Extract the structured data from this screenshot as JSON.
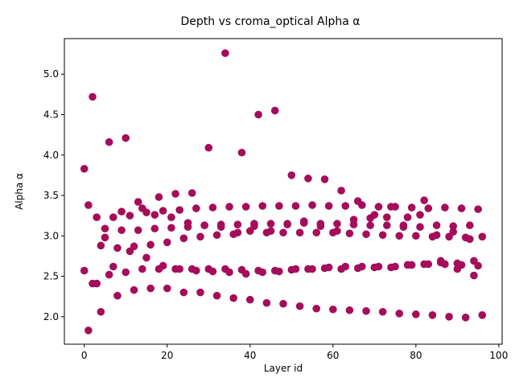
{
  "chart_data": {
    "type": "scatter",
    "title": "Depth vs croma_optical Alpha α",
    "xlabel": "Layer id",
    "ylabel": "Alpha α",
    "xlim": [
      -4.8,
      100.8
    ],
    "ylim": [
      1.66,
      5.44
    ],
    "xticks": [
      0,
      20,
      40,
      60,
      80,
      100
    ],
    "xtick_labels": [
      "0",
      "20",
      "40",
      "60",
      "80",
      "100"
    ],
    "yticks": [
      2.0,
      2.5,
      3.0,
      3.5,
      4.0,
      4.5,
      5.0
    ],
    "ytick_labels": [
      "2.0",
      "2.5",
      "3.0",
      "3.5",
      "4.0",
      "4.5",
      "5.0"
    ],
    "grid": false,
    "legend": "none",
    "marker_color": "#a50d5a",
    "series": [
      {
        "x": [
          0,
          0,
          1,
          1,
          2,
          2,
          3,
          3,
          4,
          4,
          5,
          5,
          6,
          6,
          7,
          7,
          8,
          8,
          9,
          9,
          10,
          10,
          11,
          11,
          12,
          12,
          13,
          13,
          14,
          14,
          15,
          15,
          16,
          16,
          17,
          17,
          18,
          18,
          19,
          19,
          20,
          20,
          21,
          21,
          22,
          22,
          23,
          23,
          24,
          24,
          25,
          25,
          26,
          26,
          27,
          27,
          28,
          28,
          29,
          29,
          30,
          30,
          31,
          31,
          32,
          32,
          33,
          33,
          34,
          34,
          35,
          35,
          36,
          36,
          37,
          37,
          38,
          38,
          39,
          39,
          40,
          40,
          41,
          41,
          42,
          42,
          43,
          43,
          44,
          44,
          45,
          45,
          46,
          46,
          47,
          47,
          48,
          48,
          49,
          49,
          50,
          50,
          51,
          51,
          52,
          52,
          53,
          53,
          54,
          54,
          55,
          55,
          56,
          56,
          57,
          57,
          58,
          58,
          59,
          59,
          60,
          60,
          61,
          61,
          62,
          62,
          63,
          63,
          64,
          64,
          65,
          65,
          66,
          66,
          67,
          67,
          68,
          68,
          69,
          69,
          70,
          70,
          71,
          71,
          72,
          72,
          73,
          73,
          74,
          74,
          75,
          75,
          76,
          76,
          77,
          77,
          78,
          78,
          79,
          79,
          80,
          80,
          81,
          81,
          82,
          82,
          83,
          83,
          84,
          84,
          85,
          85,
          86,
          86,
          87,
          87,
          88,
          88,
          89,
          89,
          90,
          90,
          91,
          91,
          92,
          92,
          93,
          93,
          94,
          94,
          95,
          95,
          96,
          96
        ],
        "y": [
          3.83,
          2.57,
          3.38,
          1.83,
          4.72,
          2.41,
          3.23,
          2.41,
          2.88,
          2.06,
          3.09,
          2.98,
          4.16,
          2.52,
          3.23,
          2.62,
          2.85,
          2.26,
          3.3,
          3.07,
          4.21,
          2.55,
          3.25,
          2.81,
          2.87,
          2.33,
          3.42,
          3.07,
          3.34,
          2.59,
          3.29,
          2.73,
          2.89,
          2.35,
          3.26,
          3.09,
          3.48,
          2.59,
          3.31,
          2.63,
          2.92,
          2.35,
          3.23,
          3.1,
          3.52,
          2.59,
          3.32,
          2.59,
          2.97,
          2.3,
          3.16,
          3.11,
          3.53,
          2.59,
          3.34,
          2.57,
          2.99,
          2.3,
          3.13,
          3.13,
          4.09,
          2.59,
          3.35,
          2.56,
          3.01,
          2.26,
          3.14,
          3.11,
          5.26,
          2.59,
          3.36,
          2.55,
          3.02,
          2.23,
          3.14,
          3.04,
          4.03,
          2.58,
          3.36,
          2.53,
          3.06,
          2.21,
          3.15,
          3.12,
          4.5,
          2.57,
          3.37,
          2.55,
          3.04,
          2.17,
          3.15,
          3.06,
          4.55,
          2.57,
          3.37,
          2.56,
          3.04,
          2.16,
          3.15,
          3.14,
          3.75,
          2.58,
          3.37,
          2.59,
          3.04,
          2.13,
          3.18,
          3.16,
          3.71,
          2.59,
          3.38,
          2.59,
          3.04,
          2.1,
          3.15,
          3.12,
          3.7,
          2.6,
          3.37,
          2.61,
          3.04,
          2.09,
          3.15,
          3.06,
          3.56,
          2.59,
          3.37,
          2.62,
          3.03,
          2.08,
          3.2,
          3.14,
          3.43,
          2.6,
          3.38,
          2.62,
          3.02,
          2.07,
          3.22,
          3.13,
          3.26,
          2.61,
          3.36,
          2.62,
          3.01,
          2.06,
          3.23,
          3.13,
          3.36,
          2.61,
          3.36,
          2.62,
          3.0,
          2.04,
          3.13,
          3.11,
          3.23,
          2.64,
          3.35,
          2.64,
          3.0,
          2.03,
          3.26,
          3.11,
          3.44,
          2.65,
          3.34,
          2.65,
          2.99,
          2.02,
          3.13,
          3.01,
          2.69,
          2.67,
          3.35,
          2.65,
          2.99,
          2.0,
          3.12,
          3.05,
          2.66,
          2.59,
          3.34,
          2.64,
          2.98,
          1.99,
          3.13,
          2.96,
          2.69,
          2.51,
          3.33,
          2.63,
          2.99,
          2.02
        ]
      }
    ]
  }
}
